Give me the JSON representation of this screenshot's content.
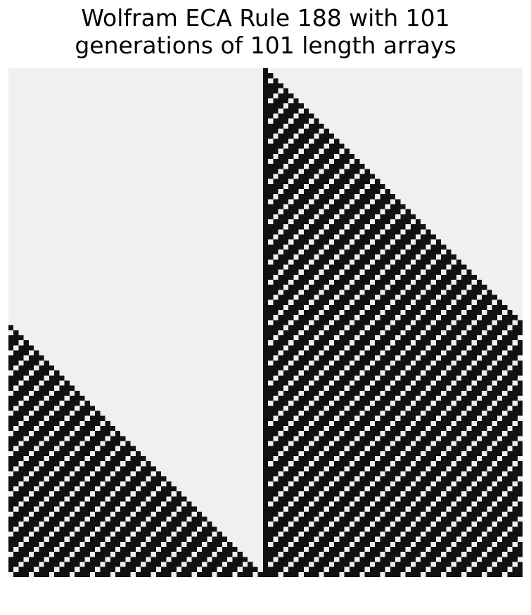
{
  "chart_data": {
    "type": "heatmap",
    "title_lines": [
      "Wolfram ECA Rule 188 with 101",
      "generations of 101 length arrays"
    ],
    "rule": 188,
    "generations": 101,
    "width": 101,
    "initial_state": "single live cell at index 50",
    "boundary": "periodic",
    "axes_visible": false,
    "colors": {
      "on": "#111111",
      "off": "#f0f0f0"
    }
  }
}
